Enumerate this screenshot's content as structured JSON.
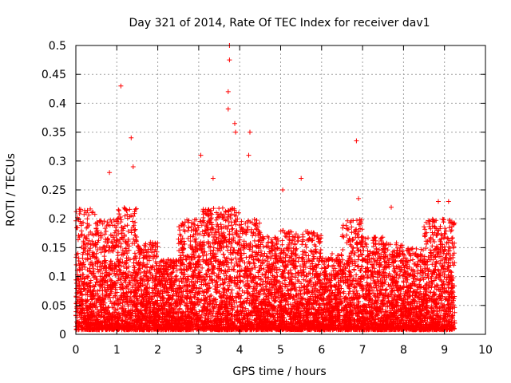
{
  "chart_data": {
    "type": "scatter",
    "title": "Day 321 of 2014, Rate Of TEC Index for receiver dav1",
    "xlabel": "GPS time / hours",
    "ylabel": "ROTI / TECUs",
    "xlim": [
      0,
      10
    ],
    "ylim": [
      0,
      0.5
    ],
    "x_ticks": [
      0,
      1,
      2,
      3,
      4,
      5,
      6,
      7,
      8,
      9,
      10
    ],
    "y_ticks": [
      0,
      0.05,
      0.1,
      0.15,
      0.2,
      0.25,
      0.3,
      0.35,
      0.4,
      0.45,
      0.5
    ],
    "x_tick_labels": [
      "0",
      "1",
      "2",
      "3",
      "4",
      "5",
      "6",
      "7",
      "8",
      "9",
      "10"
    ],
    "y_tick_labels": [
      "0",
      "0.05",
      "0.1",
      "0.15",
      "0.2",
      "0.25",
      "0.3",
      "0.35",
      "0.4",
      "0.45",
      "0.5"
    ],
    "grid": true,
    "marker": "+",
    "marker_color": "#ff0000",
    "series": [
      {
        "name": "dav1",
        "notable_points": [
          {
            "x": 1.1,
            "y": 0.43
          },
          {
            "x": 1.35,
            "y": 0.34
          },
          {
            "x": 1.4,
            "y": 0.29
          },
          {
            "x": 0.82,
            "y": 0.28
          },
          {
            "x": 3.05,
            "y": 0.31
          },
          {
            "x": 3.35,
            "y": 0.27
          },
          {
            "x": 3.75,
            "y": 0.5
          },
          {
            "x": 3.75,
            "y": 0.475
          },
          {
            "x": 3.72,
            "y": 0.42
          },
          {
            "x": 3.72,
            "y": 0.39
          },
          {
            "x": 3.88,
            "y": 0.365
          },
          {
            "x": 3.9,
            "y": 0.35
          },
          {
            "x": 4.25,
            "y": 0.35
          },
          {
            "x": 4.22,
            "y": 0.31
          },
          {
            "x": 5.05,
            "y": 0.25
          },
          {
            "x": 5.5,
            "y": 0.27
          },
          {
            "x": 6.85,
            "y": 0.335
          },
          {
            "x": 6.9,
            "y": 0.235
          },
          {
            "x": 7.7,
            "y": 0.22
          },
          {
            "x": 8.85,
            "y": 0.23
          },
          {
            "x": 9.1,
            "y": 0.23
          }
        ],
        "density_profile": [
          {
            "x_start": 0.0,
            "x_end": 0.5,
            "max_y": 0.22
          },
          {
            "x_start": 0.5,
            "x_end": 1.0,
            "max_y": 0.2
          },
          {
            "x_start": 1.0,
            "x_end": 1.5,
            "max_y": 0.22
          },
          {
            "x_start": 1.5,
            "x_end": 2.0,
            "max_y": 0.16
          },
          {
            "x_start": 2.0,
            "x_end": 2.5,
            "max_y": 0.13
          },
          {
            "x_start": 2.5,
            "x_end": 3.0,
            "max_y": 0.2
          },
          {
            "x_start": 3.0,
            "x_end": 3.5,
            "max_y": 0.22
          },
          {
            "x_start": 3.5,
            "x_end": 4.0,
            "max_y": 0.22
          },
          {
            "x_start": 4.0,
            "x_end": 4.5,
            "max_y": 0.2
          },
          {
            "x_start": 4.5,
            "x_end": 5.0,
            "max_y": 0.17
          },
          {
            "x_start": 5.0,
            "x_end": 5.5,
            "max_y": 0.18
          },
          {
            "x_start": 5.5,
            "x_end": 6.0,
            "max_y": 0.18
          },
          {
            "x_start": 6.0,
            "x_end": 6.5,
            "max_y": 0.14
          },
          {
            "x_start": 6.5,
            "x_end": 7.0,
            "max_y": 0.2
          },
          {
            "x_start": 7.0,
            "x_end": 7.5,
            "max_y": 0.17
          },
          {
            "x_start": 7.5,
            "x_end": 8.0,
            "max_y": 0.16
          },
          {
            "x_start": 8.0,
            "x_end": 8.5,
            "max_y": 0.15
          },
          {
            "x_start": 8.5,
            "x_end": 9.0,
            "max_y": 0.2
          },
          {
            "x_start": 9.0,
            "x_end": 9.25,
            "max_y": 0.2
          }
        ]
      }
    ]
  }
}
